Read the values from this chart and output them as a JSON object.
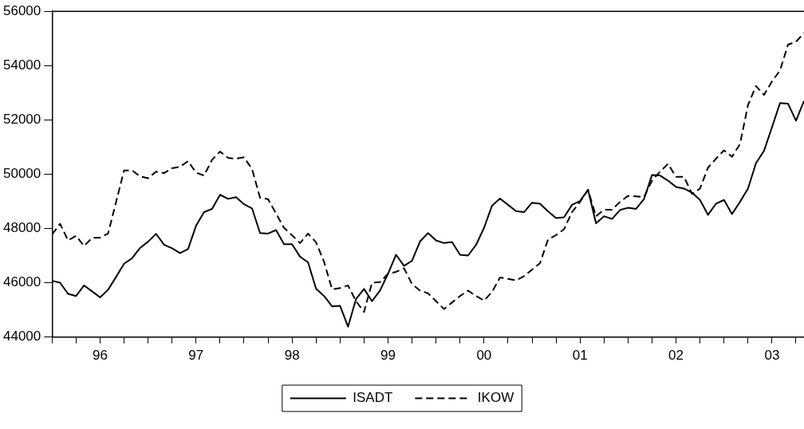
{
  "chart_data": {
    "type": "line",
    "legend": "bottom",
    "x": [
      "1996-01",
      "1996-02",
      "1996-03",
      "1996-04",
      "1996-05",
      "1996-06",
      "1996-07",
      "1996-08",
      "1996-09",
      "1996-10",
      "1996-11",
      "1996-12",
      "1997-01",
      "1997-02",
      "1997-03",
      "1997-04",
      "1997-05",
      "1997-06",
      "1997-07",
      "1997-08",
      "1997-09",
      "1997-10",
      "1997-11",
      "1997-12",
      "1998-01",
      "1998-02",
      "1998-03",
      "1998-04",
      "1998-05",
      "1998-06",
      "1998-07",
      "1998-08",
      "1998-09",
      "1998-10",
      "1998-11",
      "1998-12",
      "1999-01",
      "1999-02",
      "1999-03",
      "1999-04",
      "1999-05",
      "1999-06",
      "1999-07",
      "1999-08",
      "1999-09",
      "1999-10",
      "1999-11",
      "1999-12",
      "2000-01",
      "2000-02",
      "2000-03",
      "2000-04",
      "2000-05",
      "2000-06",
      "2000-07",
      "2000-08",
      "2000-09",
      "2000-10",
      "2000-11",
      "2000-12",
      "2001-01",
      "2001-02",
      "2001-03",
      "2001-04",
      "2001-05",
      "2001-06",
      "2001-07",
      "2001-08",
      "2001-09",
      "2001-10",
      "2001-11",
      "2001-12",
      "2002-01",
      "2002-02",
      "2002-03",
      "2002-04",
      "2002-05",
      "2002-06",
      "2002-07",
      "2002-08",
      "2002-09",
      "2002-10",
      "2002-11",
      "2002-12",
      "2003-01",
      "2003-02",
      "2003-03",
      "2003-04",
      "2003-05",
      "2003-06",
      "2003-07",
      "2003-08",
      "2003-09",
      "2003-10",
      "2003-11"
    ],
    "series": [
      {
        "name": "ISADT",
        "color": "#000000",
        "line_style": "solid",
        "values": [
          46070,
          46000,
          45590,
          45510,
          45900,
          45680,
          45460,
          45740,
          46210,
          46700,
          46900,
          47280,
          47510,
          47800,
          47400,
          47270,
          47090,
          47240,
          48100,
          48600,
          48720,
          49240,
          49090,
          49150,
          48890,
          48740,
          47830,
          47810,
          47940,
          47420,
          47420,
          46960,
          46750,
          45780,
          45510,
          45130,
          45150,
          44380,
          45400,
          45770,
          45320,
          45710,
          46330,
          47030,
          46620,
          46810,
          47520,
          47830,
          47560,
          47460,
          47500,
          47030,
          47000,
          47390,
          48020,
          48840,
          49100,
          48870,
          48640,
          48600,
          48950,
          48910,
          48630,
          48380,
          48410,
          48870,
          49010,
          49420,
          48190,
          48450,
          48350,
          48680,
          48760,
          48720,
          49080,
          49970,
          49950,
          49760,
          49530,
          49470,
          49320,
          49050,
          48500,
          48910,
          49050,
          48530,
          48980,
          49470,
          50410,
          50860,
          51730,
          52620,
          52600,
          51970,
          52700
        ]
      },
      {
        "name": "IKOW",
        "color": "#000000",
        "line_style": "dashed",
        "values": [
          47780,
          48170,
          47560,
          47730,
          47350,
          47650,
          47660,
          47810,
          48970,
          50140,
          50140,
          49920,
          49850,
          50090,
          50040,
          50220,
          50270,
          50480,
          50060,
          49950,
          50530,
          50830,
          50600,
          50570,
          50620,
          50190,
          49130,
          49080,
          48550,
          48020,
          47750,
          47460,
          47810,
          47490,
          46770,
          45760,
          45800,
          45900,
          45320,
          44920,
          46000,
          46020,
          46330,
          46400,
          46530,
          45950,
          45710,
          45610,
          45320,
          45030,
          45270,
          45510,
          45710,
          45510,
          45340,
          45660,
          46190,
          46140,
          46090,
          46240,
          46480,
          46720,
          47590,
          47750,
          47970,
          48600,
          48980,
          49420,
          48450,
          48690,
          48690,
          48980,
          49200,
          49180,
          49160,
          49760,
          50090,
          50380,
          49900,
          49900,
          49270,
          49470,
          50240,
          50570,
          50880,
          50640,
          51110,
          52550,
          53250,
          52920,
          53420,
          53820,
          54770,
          54880,
          55200
        ]
      }
    ],
    "xlim": [
      "1996-01",
      "2003-11"
    ],
    "xticks": [
      {
        "value": "1996-01",
        "label": null
      },
      {
        "value": "1996-04",
        "label": null
      },
      {
        "value": "1996-07",
        "label": "96"
      },
      {
        "value": "1996-10",
        "label": null
      },
      {
        "value": "1997-01",
        "label": null
      },
      {
        "value": "1997-04",
        "label": null
      },
      {
        "value": "1997-07",
        "label": "97"
      },
      {
        "value": "1997-10",
        "label": null
      },
      {
        "value": "1998-01",
        "label": null
      },
      {
        "value": "1998-04",
        "label": null
      },
      {
        "value": "1998-07",
        "label": "98"
      },
      {
        "value": "1998-10",
        "label": null
      },
      {
        "value": "1999-01",
        "label": null
      },
      {
        "value": "1999-04",
        "label": null
      },
      {
        "value": "1999-07",
        "label": "99"
      },
      {
        "value": "1999-10",
        "label": null
      },
      {
        "value": "2000-01",
        "label": null
      },
      {
        "value": "2000-04",
        "label": null
      },
      {
        "value": "2000-07",
        "label": "00"
      },
      {
        "value": "2000-10",
        "label": null
      },
      {
        "value": "2001-01",
        "label": null
      },
      {
        "value": "2001-04",
        "label": null
      },
      {
        "value": "2001-07",
        "label": "01"
      },
      {
        "value": "2001-10",
        "label": null
      },
      {
        "value": "2002-01",
        "label": null
      },
      {
        "value": "2002-04",
        "label": null
      },
      {
        "value": "2002-07",
        "label": "02"
      },
      {
        "value": "2002-10",
        "label": null
      },
      {
        "value": "2003-01",
        "label": null
      },
      {
        "value": "2003-04",
        "label": null
      },
      {
        "value": "2003-07",
        "label": "03"
      },
      {
        "value": "2003-10",
        "label": null
      }
    ],
    "ylim": [
      44000,
      56000
    ],
    "yticks": [
      44000,
      46000,
      48000,
      50000,
      52000,
      54000,
      56000
    ]
  }
}
